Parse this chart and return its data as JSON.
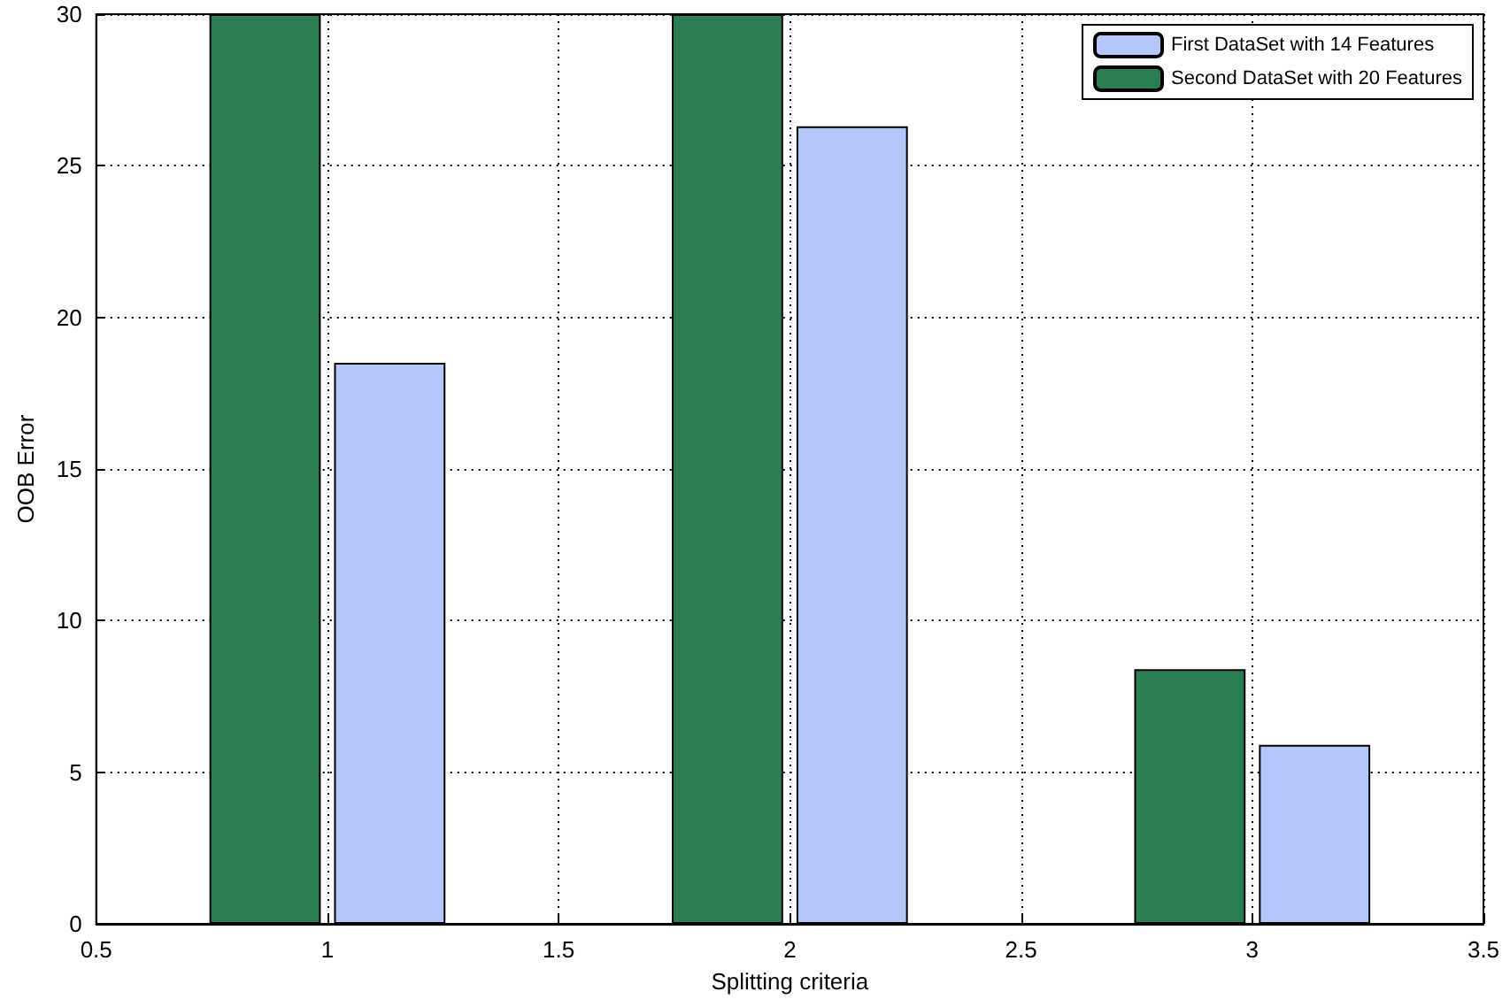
{
  "chart_data": {
    "type": "bar",
    "xlabel": "Splitting criteria",
    "ylabel": "OOB Error",
    "x": [
      1,
      2,
      3
    ],
    "series": [
      {
        "name": "First DataSet with 14 Features",
        "color": "#b4c6fa",
        "values": [
          18.5,
          26.3,
          5.9
        ]
      },
      {
        "name": "Second DataSet with 20 Features",
        "color": "#2b7d52",
        "values": [
          30,
          30,
          8.4
        ]
      }
    ],
    "xlim": [
      0.5,
      3.5
    ],
    "xticks": [
      0.5,
      1,
      1.5,
      2,
      2.5,
      3,
      3.5
    ],
    "ylim": [
      0,
      30
    ],
    "yticks": [
      0,
      5,
      10,
      15,
      20,
      25,
      30
    ],
    "grid": true,
    "legend": "top right"
  }
}
